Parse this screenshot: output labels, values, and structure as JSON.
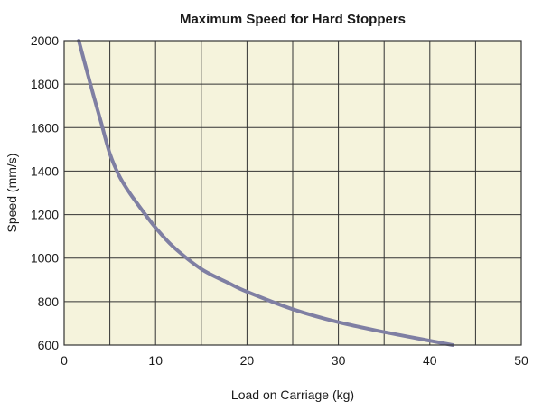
{
  "chart_data": {
    "type": "line",
    "title": "Maximum Speed for Hard Stoppers",
    "xlabel": "Load on Carriage (kg)",
    "ylabel": "Speed (mm/s)",
    "xlim": [
      0,
      50
    ],
    "ylim": [
      600,
      2000
    ],
    "xticks": [
      0,
      10,
      20,
      30,
      40,
      50
    ],
    "yticks": [
      600,
      800,
      1000,
      1200,
      1400,
      1600,
      1800,
      2000
    ],
    "grid": true,
    "x_gridlines_every": 5,
    "series": [
      {
        "x": [
          1.6,
          3,
          4,
          5,
          6,
          7,
          8,
          10,
          12,
          15,
          18,
          20,
          25,
          30,
          35,
          40,
          42.5
        ],
        "y": [
          2000,
          1780,
          1630,
          1480,
          1380,
          1310,
          1250,
          1140,
          1050,
          950,
          885,
          845,
          765,
          705,
          660,
          620,
          600
        ]
      }
    ],
    "colors": {
      "plot_background": "#f5f3dc",
      "line": "#7f7fa3",
      "grid": "#333333"
    }
  }
}
